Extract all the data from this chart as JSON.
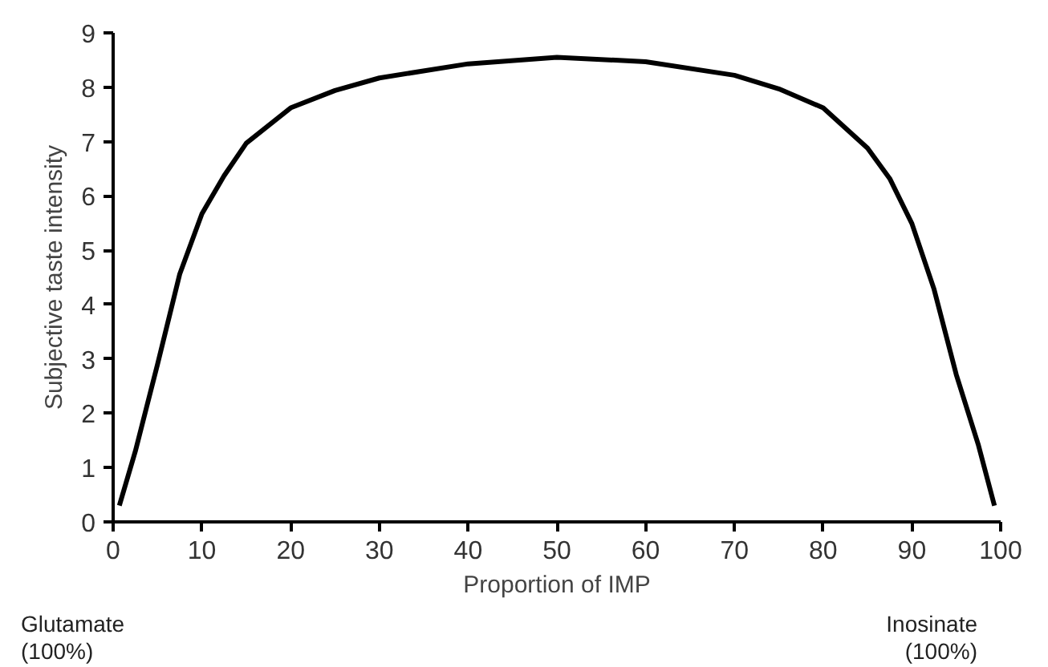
{
  "chart_data": {
    "type": "line",
    "xlabel": "Proportion of IMP",
    "ylabel": "Subjective taste intensity",
    "x": [
      0.7,
      2.5,
      5,
      7.5,
      10,
      12.5,
      15,
      20,
      25,
      30,
      40,
      50,
      60,
      70,
      75,
      80,
      85,
      87.5,
      90,
      92.5,
      95,
      97.5,
      99.3
    ],
    "series": [
      {
        "color": "#000000",
        "values": [
          0.3,
          1.3,
          2.9,
          4.56,
          5.67,
          6.37,
          6.97,
          7.62,
          7.94,
          8.17,
          8.43,
          8.55,
          8.47,
          8.22,
          7.97,
          7.62,
          6.88,
          6.32,
          5.49,
          4.28,
          2.71,
          1.41,
          0.3
        ]
      }
    ],
    "xlim": [
      0,
      100
    ],
    "ylim": [
      0,
      9
    ],
    "xticks": [
      0,
      10,
      20,
      30,
      40,
      50,
      60,
      70,
      80,
      90,
      100
    ],
    "yticks": [
      0,
      1,
      2,
      3,
      4,
      5,
      6,
      7,
      8,
      9
    ],
    "grid": false,
    "marker": "none",
    "line_style": "solid",
    "annotations": [
      "Glutamate\n(100%)",
      "Inosinate\n(100%)"
    ]
  }
}
